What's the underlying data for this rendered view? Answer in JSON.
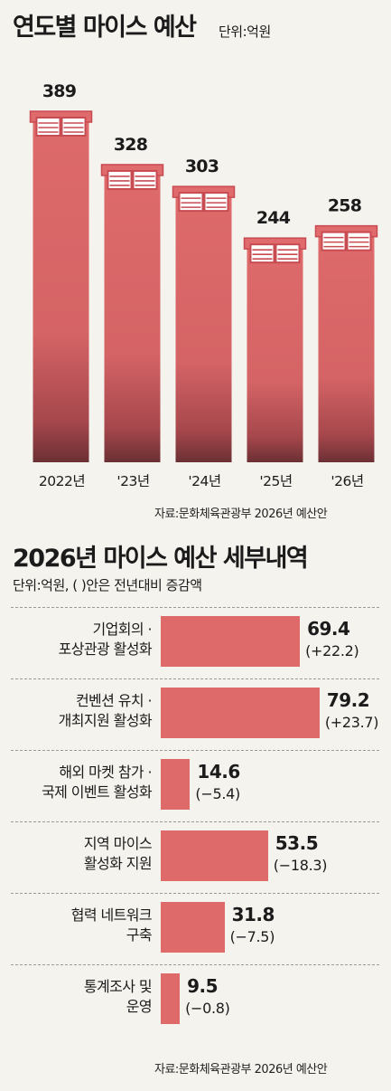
{
  "section1": {
    "title": "연도별 마이스 예산",
    "unit": "단위:억원",
    "source": "자료:문화체육관광부 2026년 예산안"
  },
  "section2": {
    "title": "2026년 마이스 예산 세부내역",
    "unit": "단위:억원, (  )안은 전년대비 증감액",
    "source": "자료:문화체육관광부 2026년 예산안"
  },
  "colors": {
    "bar": "#de6a6a",
    "bar_dark": "#6b3034",
    "background": "#f5f3ee"
  },
  "chart_data": [
    {
      "type": "bar",
      "title": "연도별 마이스 예산",
      "unit": "단위:억원",
      "categories": [
        "2022년",
        "'23년",
        "'24년",
        "'25년",
        "'26년"
      ],
      "values": [
        389,
        328,
        303,
        244,
        258
      ],
      "ylim": [
        0,
        420
      ],
      "grid": false,
      "legend": "none"
    },
    {
      "type": "bar",
      "orientation": "horizontal",
      "title": "2026년 마이스 예산 세부내역",
      "unit": "단위:억원, (  )안은 전년대비 증감액",
      "categories": [
        [
          "기업회의 ·",
          "포상관광 활성화"
        ],
        [
          "컨벤션 유치 ·",
          "개최지원 활성화"
        ],
        [
          "해외 마켓 참가 ·",
          "국제 이벤트 활성화"
        ],
        [
          "지역 마이스",
          "활성화 지원"
        ],
        [
          "협력 네트워크",
          "구축"
        ],
        [
          "통계조사 및",
          "운영"
        ]
      ],
      "values": [
        69.4,
        79.2,
        14.6,
        53.5,
        31.8,
        9.5
      ],
      "value_labels": [
        "69.4",
        "79.2",
        "14.6",
        "53.5",
        "31.8",
        "9.5"
      ],
      "changes": [
        "(+22.2)",
        "(+23.7)",
        "(−5.4)",
        "(−18.3)",
        "(−7.5)",
        "(−0.8)"
      ],
      "grid": false,
      "legend": "none"
    }
  ]
}
